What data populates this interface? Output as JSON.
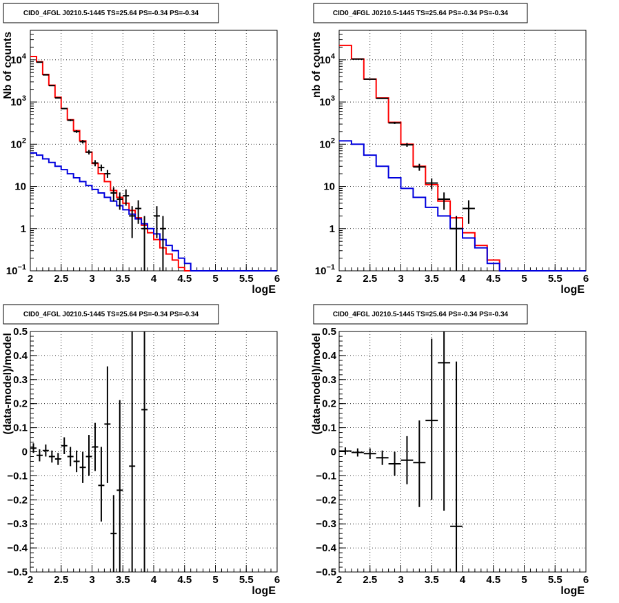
{
  "chart_data": [
    {
      "type": "histogram",
      "title": "CID0_4FGL J0210.5-1445 TS=25.64 PS=-0.34 PS=-0.34",
      "xlabel": "logE",
      "ylabel": "Nb of counts",
      "xlim": [
        2,
        6
      ],
      "ylim": [
        0.1,
        50000
      ],
      "yscale": "log",
      "grid": true,
      "xticks": [
        "2",
        "2.5",
        "3",
        "3.5",
        "4",
        "4.5",
        "5",
        "5.5",
        "6"
      ],
      "yticks": [
        {
          "value": 0.1,
          "base": "10",
          "exp": "−1"
        },
        {
          "value": 1,
          "label": "1"
        },
        {
          "value": 10,
          "label": "10"
        },
        {
          "value": 100,
          "base": "10",
          "exp": "2"
        },
        {
          "value": 1000,
          "base": "10",
          "exp": "3"
        },
        {
          "value": 10000,
          "base": "10",
          "exp": "4"
        }
      ],
      "bin_edges": [
        2.0,
        2.1,
        2.2,
        2.3,
        2.4,
        2.5,
        2.6,
        2.7,
        2.8,
        2.9,
        3.0,
        3.1,
        3.2,
        3.3,
        3.4,
        3.5,
        3.6,
        3.7,
        3.8,
        3.9,
        4.0,
        4.1,
        4.2,
        4.3,
        4.4,
        4.5,
        4.6,
        4.7,
        4.8,
        4.9,
        5.0,
        5.1,
        5.2,
        5.3,
        5.4,
        5.5,
        5.6,
        5.7,
        5.8,
        5.9,
        6.0
      ],
      "series": [
        {
          "color": "#ff0000",
          "values": [
            12000,
            9000,
            4500,
            2500,
            1300,
            700,
            380,
            210,
            120,
            65,
            35,
            20,
            13,
            8,
            5.5,
            4,
            2.7,
            1.8,
            1.2,
            0.8,
            0.55,
            0.35,
            0.25,
            0.18,
            0.12,
            0.1,
            0.1,
            0.1,
            0.1,
            0.1,
            0.1,
            0.1,
            0.1,
            0.1,
            0.1,
            0.1,
            0.1,
            0.1,
            0.1,
            0.1
          ]
        },
        {
          "color": "#0000dd",
          "values": [
            62,
            55,
            45,
            37,
            30,
            25,
            20,
            16,
            13,
            10.5,
            8.5,
            7,
            5.5,
            4.5,
            3.5,
            2.8,
            2.2,
            1.7,
            1.3,
            1.0,
            0.75,
            0.55,
            0.4,
            0.3,
            0.2,
            0.15,
            0.1,
            0.1,
            0.1,
            0.1,
            0.1,
            0.1,
            0.1,
            0.1,
            0.1,
            0.1,
            0.1,
            0.1,
            0.1,
            0.1
          ]
        }
      ],
      "points": [
        {
          "x": 2.15,
          "y": 8800,
          "ylo": 8700,
          "yhi": 8900
        },
        {
          "x": 2.25,
          "y": 4400,
          "ylo": 4330,
          "yhi": 4470
        },
        {
          "x": 2.35,
          "y": 2450,
          "ylo": 2400,
          "yhi": 2500
        },
        {
          "x": 2.45,
          "y": 1250,
          "ylo": 1215,
          "yhi": 1285
        },
        {
          "x": 2.55,
          "y": 700,
          "ylo": 674,
          "yhi": 726
        },
        {
          "x": 2.65,
          "y": 370,
          "ylo": 351,
          "yhi": 389
        },
        {
          "x": 2.75,
          "y": 200,
          "ylo": 186,
          "yhi": 214
        },
        {
          "x": 2.85,
          "y": 115,
          "ylo": 104,
          "yhi": 126
        },
        {
          "x": 2.95,
          "y": 65,
          "ylo": 57,
          "yhi": 73
        },
        {
          "x": 3.05,
          "y": 36,
          "ylo": 30,
          "yhi": 42
        },
        {
          "x": 3.15,
          "y": 28,
          "ylo": 23,
          "yhi": 33
        },
        {
          "x": 3.25,
          "y": 20,
          "ylo": 16,
          "yhi": 24.5
        },
        {
          "x": 3.35,
          "y": 7,
          "ylo": 4.4,
          "yhi": 9.6
        },
        {
          "x": 3.45,
          "y": 5,
          "ylo": 2.8,
          "yhi": 7.2
        },
        {
          "x": 3.55,
          "y": 6,
          "ylo": 3.5,
          "yhi": 8.5
        },
        {
          "x": 3.65,
          "y": 2,
          "ylo": 0.6,
          "yhi": 3.4
        },
        {
          "x": 3.75,
          "y": 3,
          "ylo": 1.3,
          "yhi": 4.7
        },
        {
          "x": 3.85,
          "y": 1,
          "ylo": 0.1,
          "yhi": 2.0
        },
        {
          "x": 4.05,
          "y": 2,
          "ylo": 0.6,
          "yhi": 3.4
        },
        {
          "x": 4.15,
          "y": 1,
          "ylo": 0.1,
          "yhi": 2.0
        }
      ],
      "xerr": 0.05
    },
    {
      "type": "histogram",
      "title": "CID0_4FGL J0210.5-1445 TS=25.64 PS=-0.34 PS=-0.34",
      "xlabel": "logE",
      "ylabel": "nb of counts",
      "xlim": [
        2,
        6
      ],
      "ylim": [
        0.1,
        50000
      ],
      "yscale": "log",
      "grid": true,
      "xticks": [
        "2",
        "2.5",
        "3",
        "3.5",
        "4",
        "4.5",
        "5",
        "5.5",
        "6"
      ],
      "yticks": [
        {
          "value": 0.1,
          "base": "10",
          "exp": "−1"
        },
        {
          "value": 1,
          "label": "1"
        },
        {
          "value": 10,
          "label": "10"
        },
        {
          "value": 100,
          "base": "10",
          "exp": "2"
        },
        {
          "value": 1000,
          "base": "10",
          "exp": "3"
        },
        {
          "value": 10000,
          "base": "10",
          "exp": "4"
        }
      ],
      "bin_edges": [
        2.0,
        2.2,
        2.4,
        2.6,
        2.8,
        3.0,
        3.2,
        3.4,
        3.6,
        3.8,
        4.0,
        4.2,
        4.4,
        4.6,
        4.8,
        5.0,
        5.2,
        5.4,
        5.6,
        5.8,
        6.0
      ],
      "series": [
        {
          "color": "#ff0000",
          "values": [
            22000,
            10500,
            3500,
            1250,
            330,
            100,
            30,
            11,
            4.5,
            1.8,
            0.8,
            0.4,
            0.18,
            0.1,
            0.1,
            0.1,
            0.1,
            0.1,
            0.1,
            0.1
          ]
        },
        {
          "color": "#0000dd",
          "values": [
            120,
            100,
            55,
            30,
            16,
            9,
            5.5,
            3.2,
            2.0,
            1.0,
            0.6,
            0.35,
            0.15,
            0.1,
            0.1,
            0.1,
            0.1,
            0.1,
            0.1,
            0.1
          ]
        }
      ],
      "points": [
        {
          "x": 2.3,
          "y": 10400,
          "ylo": 10300,
          "yhi": 10500
        },
        {
          "x": 2.5,
          "y": 3480,
          "ylo": 3420,
          "yhi": 3540
        },
        {
          "x": 2.7,
          "y": 1220,
          "ylo": 1185,
          "yhi": 1255
        },
        {
          "x": 2.9,
          "y": 320,
          "ylo": 302,
          "yhi": 338
        },
        {
          "x": 3.1,
          "y": 97,
          "ylo": 87,
          "yhi": 107
        },
        {
          "x": 3.3,
          "y": 29,
          "ylo": 23.6,
          "yhi": 34.4
        },
        {
          "x": 3.5,
          "y": 12,
          "ylo": 8.5,
          "yhi": 15.5
        },
        {
          "x": 3.7,
          "y": 5,
          "ylo": 2.8,
          "yhi": 7.2
        },
        {
          "x": 3.9,
          "y": 1,
          "ylo": 0.1,
          "yhi": 2.0
        },
        {
          "x": 4.1,
          "y": 3,
          "ylo": 1.3,
          "yhi": 4.7
        }
      ],
      "xerr": 0.1
    },
    {
      "type": "scatter",
      "title": "CID0_4FGL J0210.5-1445 TS=25.64 PS=-0.34 PS=-0.34",
      "xlabel": "logE",
      "ylabel": "(data-model)/model",
      "xlim": [
        2,
        6
      ],
      "ylim": [
        -0.5,
        0.5
      ],
      "grid": true,
      "xticks": [
        "2",
        "2.5",
        "3",
        "3.5",
        "4",
        "4.5",
        "5",
        "5.5",
        "6"
      ],
      "yticks": [
        "−0.5",
        "−0.4",
        "−0.3",
        "−0.2",
        "−0.1",
        "0",
        "0.1",
        "0.2",
        "0.3",
        "0.4",
        "0.5"
      ],
      "points": [
        {
          "x": 2.05,
          "y": 0.015,
          "ylo": -0.005,
          "yhi": 0.035
        },
        {
          "x": 2.15,
          "y": -0.015,
          "ylo": -0.04,
          "yhi": 0.01
        },
        {
          "x": 2.25,
          "y": 0.005,
          "ylo": -0.02,
          "yhi": 0.03
        },
        {
          "x": 2.35,
          "y": -0.02,
          "ylo": -0.045,
          "yhi": 0.005
        },
        {
          "x": 2.45,
          "y": -0.03,
          "ylo": -0.055,
          "yhi": -0.005
        },
        {
          "x": 2.55,
          "y": 0.025,
          "ylo": -0.01,
          "yhi": 0.06
        },
        {
          "x": 2.65,
          "y": -0.02,
          "ylo": -0.06,
          "yhi": 0.02
        },
        {
          "x": 2.75,
          "y": -0.04,
          "ylo": -0.085,
          "yhi": 0.005
        },
        {
          "x": 2.85,
          "y": -0.065,
          "ylo": -0.13,
          "yhi": 0.0
        },
        {
          "x": 2.95,
          "y": -0.02,
          "ylo": -0.1,
          "yhi": 0.07
        },
        {
          "x": 3.05,
          "y": 0.02,
          "ylo": -0.08,
          "yhi": 0.12
        },
        {
          "x": 3.15,
          "y": -0.14,
          "ylo": -0.29,
          "yhi": 0.02
        },
        {
          "x": 3.25,
          "y": 0.115,
          "ylo": -0.13,
          "yhi": 0.355
        },
        {
          "x": 3.35,
          "y": -0.34,
          "ylo": -0.5,
          "yhi": -0.18
        },
        {
          "x": 3.45,
          "y": -0.16,
          "ylo": -0.5,
          "yhi": 0.215
        },
        {
          "x": 3.65,
          "y": -0.06,
          "ylo": -0.5,
          "yhi": 0.5
        },
        {
          "x": 3.85,
          "y": 0.175,
          "ylo": -0.5,
          "yhi": 0.5
        }
      ],
      "xerr": 0.05
    },
    {
      "type": "scatter",
      "title": "CID0_4FGL J0210.5-1445 TS=25.64 PS=-0.34 PS=-0.34",
      "xlabel": "logE",
      "ylabel": "(data-model)/model",
      "xlim": [
        2,
        6
      ],
      "ylim": [
        -0.5,
        0.5
      ],
      "grid": true,
      "xticks": [
        "2",
        "2.5",
        "3",
        "3.5",
        "4",
        "4.5",
        "5",
        "5.5",
        "6"
      ],
      "yticks": [
        "−0.5",
        "−0.4",
        "−0.3",
        "−0.2",
        "−0.1",
        "0",
        "0.1",
        "0.2",
        "0.3",
        "0.4",
        "0.5"
      ],
      "points": [
        {
          "x": 2.1,
          "y": 0.003,
          "ylo": -0.012,
          "yhi": 0.018
        },
        {
          "x": 2.3,
          "y": -0.003,
          "ylo": -0.02,
          "yhi": 0.014
        },
        {
          "x": 2.5,
          "y": -0.008,
          "ylo": -0.03,
          "yhi": 0.014
        },
        {
          "x": 2.7,
          "y": -0.025,
          "ylo": -0.055,
          "yhi": 0.005
        },
        {
          "x": 2.9,
          "y": -0.05,
          "ylo": -0.1,
          "yhi": 0.0
        },
        {
          "x": 3.1,
          "y": -0.035,
          "ylo": -0.135,
          "yhi": 0.065
        },
        {
          "x": 3.3,
          "y": -0.045,
          "ylo": -0.23,
          "yhi": 0.13
        },
        {
          "x": 3.5,
          "y": 0.13,
          "ylo": -0.2,
          "yhi": 0.47
        },
        {
          "x": 3.7,
          "y": 0.37,
          "ylo": -0.245,
          "yhi": 0.5
        },
        {
          "x": 3.9,
          "y": -0.31,
          "ylo": -0.5,
          "yhi": 0.375
        }
      ],
      "xerr": 0.1
    }
  ]
}
